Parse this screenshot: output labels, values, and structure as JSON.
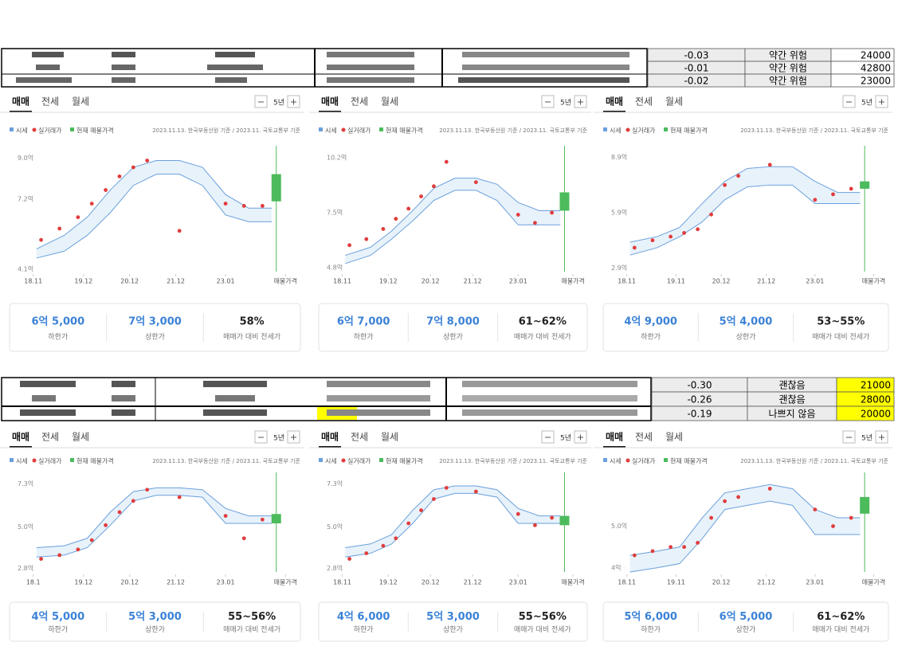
{
  "tables": [
    {
      "rows": [
        [
          "-0.03",
          "약간 위험",
          "24000"
        ],
        [
          "-0.01",
          "약간 위험",
          "42800"
        ],
        [
          "-0.02",
          "약간 위험",
          "23000"
        ]
      ]
    },
    {
      "rows": [
        [
          "-0.30",
          "괜찮음",
          "21000"
        ],
        [
          "-0.26",
          "괜찮음",
          "28000"
        ],
        [
          "-0.19",
          "나쁘지 않음",
          "20000"
        ]
      ]
    }
  ],
  "chart_data": [
    {
      "type": "price-band",
      "tabs": [
        "매매",
        "전세",
        "월세"
      ],
      "period": "5년",
      "source": "2023.11.13. 한국부동산원 기준 / 2023.11. 국토교통부 기준",
      "xlim": [
        2018.8,
        2024.45
      ],
      "xticks": [
        {
          "value": 2018.83,
          "label": "18.11"
        },
        {
          "value": 2019.92,
          "label": "19.12"
        },
        {
          "value": 2020.92,
          "label": "20.12"
        },
        {
          "value": 2021.92,
          "label": "21.12"
        },
        {
          "value": 2023.0,
          "label": "23.01"
        },
        {
          "value": 2024.3,
          "label": "매물가격"
        }
      ],
      "ylim": [
        4.0,
        9.2
      ],
      "yticks": [
        {
          "value": 9.0,
          "label": "9.0억"
        },
        {
          "value": 7.2,
          "label": "7.2억"
        },
        {
          "value": 4.1,
          "label": "4.1억"
        }
      ],
      "series": [
        {
          "name": "시세",
          "color": "#6aa0dc",
          "x": [
            2018.9,
            2019.5,
            2020.0,
            2020.5,
            2021.0,
            2021.5,
            2022.0,
            2022.5,
            2023.0,
            2023.5,
            2024.0
          ],
          "upper": [
            5.0,
            5.6,
            6.4,
            7.6,
            8.6,
            8.9,
            8.9,
            8.6,
            7.4,
            6.8,
            6.8
          ],
          "lower": [
            4.6,
            4.9,
            5.6,
            6.6,
            7.8,
            8.3,
            8.3,
            7.8,
            6.5,
            6.2,
            6.2
          ]
        },
        {
          "name": "실거래가",
          "color": "#e03c3c",
          "x": [
            2019.0,
            2019.4,
            2019.8,
            2020.1,
            2020.4,
            2020.7,
            2021.0,
            2021.3,
            2022.0,
            2023.0,
            2023.4,
            2023.8
          ],
          "values": [
            5.4,
            5.9,
            6.4,
            7.0,
            7.6,
            8.2,
            8.6,
            8.9,
            5.8,
            7.0,
            6.9,
            6.9
          ]
        },
        {
          "name": "현재 매물가격",
          "color": "#4cbb5c",
          "x": 2024.1,
          "values": [
            7.1,
            8.3
          ]
        }
      ],
      "summary": [
        {
          "value": "6억 5,000",
          "label": "하한가"
        },
        {
          "value": "7억 3,000",
          "label": "상한가"
        },
        {
          "value": "58%",
          "label": "매매가 대비 전세가"
        }
      ]
    },
    {
      "type": "price-band",
      "tabs": [
        "매매",
        "전세",
        "월세"
      ],
      "period": "5년",
      "source": "2023.11.13. 한국부동산원 기준 / 2023.11. 국토교통부 기준",
      "xlim": [
        2018.8,
        2024.45
      ],
      "xticks": [
        {
          "value": 2018.83,
          "label": "18.11"
        },
        {
          "value": 2019.92,
          "label": "19.12"
        },
        {
          "value": 2020.92,
          "label": "20.12"
        },
        {
          "value": 2021.92,
          "label": "21.12"
        },
        {
          "value": 2023.0,
          "label": "23.01"
        },
        {
          "value": 2024.3,
          "label": "매물가격"
        }
      ],
      "ylim": [
        4.6,
        10.4
      ],
      "yticks": [
        {
          "value": 10.2,
          "label": "10.2억"
        },
        {
          "value": 7.5,
          "label": "7.5억"
        },
        {
          "value": 4.8,
          "label": "4.8억"
        }
      ],
      "series": [
        {
          "name": "시세",
          "color": "#6aa0dc",
          "x": [
            2018.9,
            2019.5,
            2020.0,
            2020.5,
            2021.0,
            2021.5,
            2022.0,
            2022.5,
            2023.0,
            2023.5,
            2024.0
          ],
          "upper": [
            5.4,
            5.8,
            6.6,
            7.6,
            8.7,
            9.2,
            9.2,
            8.9,
            8.0,
            7.6,
            7.6
          ],
          "lower": [
            5.0,
            5.4,
            6.2,
            7.1,
            8.1,
            8.6,
            8.6,
            8.1,
            6.9,
            6.9,
            6.9
          ]
        },
        {
          "name": "실거래가",
          "color": "#e03c3c",
          "x": [
            2019.0,
            2019.4,
            2019.8,
            2020.1,
            2020.4,
            2020.7,
            2021.0,
            2021.3,
            2022.0,
            2023.0,
            2023.4,
            2023.8
          ],
          "values": [
            5.9,
            6.2,
            6.7,
            7.2,
            7.7,
            8.3,
            8.8,
            10.0,
            9.0,
            7.4,
            7.0,
            7.5
          ]
        },
        {
          "name": "현재 매물가격",
          "color": "#4cbb5c",
          "x": 2024.1,
          "values": [
            7.6,
            8.5
          ]
        }
      ],
      "summary": [
        {
          "value": "6억 7,000",
          "label": "하한가"
        },
        {
          "value": "7억 8,000",
          "label": "상한가"
        },
        {
          "value": "61~62%",
          "label": "매매가 대비 전세가"
        }
      ]
    },
    {
      "type": "price-band",
      "tabs": [
        "매매",
        "전세",
        "월세"
      ],
      "period": "5년",
      "source": "2023.11.13. 한국부동산원 기준 / 2023.11. 국토교통부 기준",
      "xlim": [
        2018.8,
        2024.45
      ],
      "xticks": [
        {
          "value": 2018.83,
          "label": "18.11"
        },
        {
          "value": 2019.92,
          "label": "19.11"
        },
        {
          "value": 2020.92,
          "label": "20.12"
        },
        {
          "value": 2021.92,
          "label": "21.12"
        },
        {
          "value": 2023.0,
          "label": "23.01"
        },
        {
          "value": 2024.3,
          "label": "매물가격"
        }
      ],
      "ylim": [
        2.7,
        9.1
      ],
      "yticks": [
        {
          "value": 8.9,
          "label": "8.9억"
        },
        {
          "value": 5.9,
          "label": "5.9억"
        },
        {
          "value": 2.9,
          "label": "2.9억"
        }
      ],
      "series": [
        {
          "name": "시세",
          "color": "#6aa0dc",
          "x": [
            2018.9,
            2019.5,
            2020.0,
            2020.5,
            2021.0,
            2021.5,
            2022.0,
            2022.5,
            2023.0,
            2023.5,
            2024.0
          ],
          "upper": [
            4.3,
            4.6,
            5.1,
            6.4,
            7.6,
            8.3,
            8.4,
            8.4,
            7.6,
            7.0,
            7.0
          ],
          "lower": [
            3.6,
            4.0,
            4.6,
            5.4,
            6.6,
            7.3,
            7.4,
            7.4,
            6.4,
            6.4,
            6.4
          ]
        },
        {
          "name": "실거래가",
          "color": "#e03c3c",
          "x": [
            2019.0,
            2019.4,
            2019.8,
            2020.1,
            2020.4,
            2020.7,
            2021.0,
            2021.3,
            2022.0,
            2023.0,
            2023.4,
            2023.8
          ],
          "values": [
            4.0,
            4.4,
            4.6,
            4.8,
            5.0,
            5.8,
            7.4,
            7.9,
            8.5,
            6.6,
            6.9,
            7.2
          ]
        },
        {
          "name": "현재 매물가격",
          "color": "#4cbb5c",
          "x": 2024.1,
          "values": [
            7.2,
            7.6
          ]
        }
      ],
      "summary": [
        {
          "value": "4억 9,000",
          "label": "하한가"
        },
        {
          "value": "5억 4,000",
          "label": "상한가"
        },
        {
          "value": "53~55%",
          "label": "매매가 대비 전세가"
        }
      ]
    },
    {
      "type": "price-band",
      "tabs": [
        "매매",
        "전세",
        "월세"
      ],
      "period": "5년",
      "source": "2023.11.13. 한국부동산원 기준 / 2023.11. 국토교통부 기준",
      "xlim": [
        2018.8,
        2024.45
      ],
      "xticks": [
        {
          "value": 2018.83,
          "label": "18.1"
        },
        {
          "value": 2019.92,
          "label": "19.12"
        },
        {
          "value": 2020.92,
          "label": "20.12"
        },
        {
          "value": 2021.92,
          "label": "21.12"
        },
        {
          "value": 2023.0,
          "label": "23.01"
        },
        {
          "value": 2024.3,
          "label": "매물가격"
        }
      ],
      "ylim": [
        2.6,
        7.5
      ],
      "yticks": [
        {
          "value": 7.3,
          "label": "7.3억"
        },
        {
          "value": 5.0,
          "label": "5.0억"
        },
        {
          "value": 2.8,
          "label": "2.8억"
        }
      ],
      "series": [
        {
          "name": "시세",
          "color": "#6aa0dc",
          "x": [
            2018.9,
            2019.5,
            2020.0,
            2020.5,
            2021.0,
            2021.5,
            2022.0,
            2022.5,
            2023.0,
            2023.5,
            2024.0
          ],
          "upper": [
            3.9,
            4.0,
            4.4,
            5.8,
            6.9,
            7.1,
            7.1,
            7.0,
            6.0,
            5.6,
            5.6
          ],
          "lower": [
            3.4,
            3.5,
            3.9,
            5.1,
            6.4,
            6.7,
            6.7,
            6.6,
            5.2,
            5.2,
            5.2
          ]
        },
        {
          "name": "실거래가",
          "color": "#e03c3c",
          "x": [
            2019.0,
            2019.4,
            2019.8,
            2020.1,
            2020.4,
            2020.7,
            2021.0,
            2021.3,
            2022.0,
            2023.0,
            2023.4,
            2023.8
          ],
          "values": [
            3.3,
            3.5,
            3.8,
            4.3,
            5.1,
            5.8,
            6.4,
            7.0,
            6.6,
            5.6,
            4.4,
            5.4
          ]
        },
        {
          "name": "현재 매물가격",
          "color": "#4cbb5c",
          "x": 2024.1,
          "values": [
            5.2,
            5.7
          ]
        }
      ],
      "summary": [
        {
          "value": "4억 5,000",
          "label": "하한가"
        },
        {
          "value": "5억 3,000",
          "label": "상한가"
        },
        {
          "value": "55~56%",
          "label": "매매가 대비 전세가"
        }
      ]
    },
    {
      "type": "price-band",
      "tabs": [
        "매매",
        "전세",
        "월세"
      ],
      "period": "5년",
      "source": "2023.11.13. 한국부동산원 기준 / 2023.11. 국토교통부 기준",
      "xlim": [
        2018.8,
        2024.45
      ],
      "xticks": [
        {
          "value": 2018.83,
          "label": "18.11"
        },
        {
          "value": 2019.92,
          "label": "19.12"
        },
        {
          "value": 2020.92,
          "label": "20.12"
        },
        {
          "value": 2021.92,
          "label": "21.12"
        },
        {
          "value": 2023.0,
          "label": "23.01"
        },
        {
          "value": 2024.3,
          "label": "매물가격"
        }
      ],
      "ylim": [
        2.6,
        7.5
      ],
      "yticks": [
        {
          "value": 7.3,
          "label": "7.3억"
        },
        {
          "value": 5.0,
          "label": "5.0억"
        },
        {
          "value": 2.8,
          "label": "2.8억"
        }
      ],
      "series": [
        {
          "name": "시세",
          "color": "#6aa0dc",
          "x": [
            2018.9,
            2019.5,
            2020.0,
            2020.5,
            2021.0,
            2021.5,
            2022.0,
            2022.5,
            2023.0,
            2023.5,
            2024.0
          ],
          "upper": [
            3.9,
            4.1,
            4.6,
            5.9,
            7.0,
            7.2,
            7.2,
            7.0,
            6.0,
            5.6,
            5.6
          ],
          "lower": [
            3.4,
            3.6,
            4.1,
            5.2,
            6.5,
            6.8,
            6.8,
            6.6,
            5.2,
            5.2,
            5.2
          ]
        },
        {
          "name": "실거래가",
          "color": "#e03c3c",
          "x": [
            2019.0,
            2019.4,
            2019.8,
            2020.1,
            2020.4,
            2020.7,
            2021.0,
            2021.3,
            2022.0,
            2023.0,
            2023.4,
            2023.8
          ],
          "values": [
            3.3,
            3.6,
            4.0,
            4.4,
            5.2,
            5.9,
            6.5,
            7.1,
            6.9,
            5.7,
            5.1,
            5.5
          ]
        },
        {
          "name": "현재 매물가격",
          "color": "#4cbb5c",
          "x": 2024.1,
          "values": [
            5.1,
            5.6
          ]
        }
      ],
      "summary": [
        {
          "value": "4억 6,000",
          "label": "하한가"
        },
        {
          "value": "5억 3,000",
          "label": "상한가"
        },
        {
          "value": "55~56%",
          "label": "매매가 대비 전세가"
        }
      ]
    },
    {
      "type": "price-band",
      "tabs": [
        "매매",
        "전세",
        "월세"
      ],
      "period": "5년",
      "source": "2023.11.13. 한국부동산원 기준 / 2023.11. 국토교통부 기준",
      "xlim": [
        2018.8,
        2024.45
      ],
      "xticks": [
        {
          "value": 2018.83,
          "label": "18.11"
        },
        {
          "value": 2019.92,
          "label": "19.11"
        },
        {
          "value": 2020.92,
          "label": "20.12"
        },
        {
          "value": 2021.92,
          "label": "21.12"
        },
        {
          "value": 2023.0,
          "label": "23.01"
        },
        {
          "value": 2024.3,
          "label": "매물가격"
        }
      ],
      "ylim": [
        3.9,
        6.1
      ],
      "yticks": [
        {
          "value": 5.0,
          "label": "5.0억"
        },
        {
          "value": 4.0,
          "label": "4억"
        }
      ],
      "series": [
        {
          "name": "시세",
          "color": "#6aa0dc",
          "x": [
            2018.9,
            2019.5,
            2020.0,
            2020.5,
            2021.0,
            2021.5,
            2022.0,
            2022.5,
            2023.0,
            2023.5,
            2024.0
          ],
          "upper": [
            4.3,
            4.4,
            4.5,
            5.2,
            5.8,
            5.9,
            6.0,
            5.9,
            5.4,
            5.2,
            5.2
          ],
          "lower": [
            3.9,
            4.0,
            4.1,
            4.7,
            5.4,
            5.5,
            5.6,
            5.5,
            4.8,
            4.8,
            4.8
          ]
        },
        {
          "name": "실거래가",
          "color": "#e03c3c",
          "x": [
            2019.0,
            2019.4,
            2019.8,
            2020.1,
            2020.4,
            2020.7,
            2021.0,
            2021.3,
            2022.0,
            2023.0,
            2023.4,
            2023.8
          ],
          "values": [
            4.3,
            4.4,
            4.5,
            4.5,
            4.6,
            5.2,
            5.6,
            5.7,
            5.9,
            5.4,
            5.0,
            5.2
          ]
        },
        {
          "name": "현재 매물가격",
          "color": "#4cbb5c",
          "x": 2024.1,
          "values": [
            5.3,
            5.7
          ]
        }
      ],
      "summary": [
        {
          "value": "5억 6,000",
          "label": "하한가"
        },
        {
          "value": "6억 5,000",
          "label": "상한가"
        },
        {
          "value": "61~62%",
          "label": "매매가 대비 전세가"
        }
      ]
    }
  ]
}
